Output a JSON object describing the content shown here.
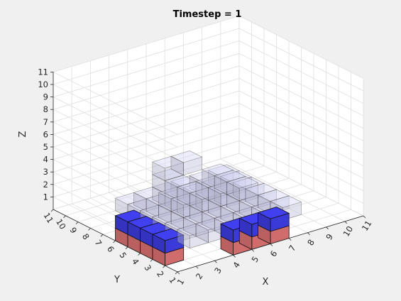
{
  "chart_data": {
    "type": "3d-voxel",
    "title": "Timestep = 1",
    "xlabel": "X",
    "ylabel": "Y",
    "zlabel": "Z",
    "xlim": [
      1,
      11
    ],
    "ylim": [
      1,
      11
    ],
    "zlim": [
      0,
      11
    ],
    "x_ticks": [
      "1",
      "2",
      "3",
      "4",
      "5",
      "6",
      "7",
      "8",
      "9",
      "10",
      "11"
    ],
    "y_ticks": [
      "1",
      "2",
      "3",
      "4",
      "5",
      "6",
      "7",
      "8",
      "9",
      "10",
      "11"
    ],
    "z_ticks": [
      "1",
      "2",
      "3",
      "4",
      "5",
      "6",
      "7",
      "8",
      "9",
      "10",
      "11"
    ],
    "grid": true,
    "colors": {
      "background": "#f0f0f0",
      "axes_face": "#ffffff",
      "grid": "#dfdfdf",
      "axis_line": "#262626",
      "blue": "#4040f0",
      "red": "#e87878",
      "ghost": "#d8d8f8"
    },
    "series": [
      {
        "color": "blue",
        "voxels": [
          {
            "x": 1,
            "y": 2,
            "z": 1
          },
          {
            "x": 1,
            "y": 3,
            "z": 1
          },
          {
            "x": 1,
            "y": 4,
            "z": 1
          },
          {
            "x": 1,
            "y": 5,
            "z": 1
          },
          {
            "x": 4,
            "y": 1,
            "z": 1
          },
          {
            "x": 5,
            "y": 1,
            "z": 1
          },
          {
            "x": 6,
            "y": 1,
            "z": 1
          }
        ]
      },
      {
        "color": "red",
        "voxels": [
          {
            "x": 1,
            "y": 2,
            "z": 0
          },
          {
            "x": 1,
            "y": 3,
            "z": 0
          },
          {
            "x": 1,
            "y": 4,
            "z": 0
          },
          {
            "x": 1,
            "y": 5,
            "z": 0
          },
          {
            "x": 4,
            "y": 1,
            "z": 0
          },
          {
            "x": 5,
            "y": 1,
            "z": 0
          },
          {
            "x": 6,
            "y": 1,
            "z": 0
          }
        ]
      },
      {
        "color": "ghost",
        "voxels": [
          {
            "x": 3,
            "y": 3,
            "z": 0
          },
          {
            "x": 4,
            "y": 3,
            "z": 0
          },
          {
            "x": 5,
            "y": 3,
            "z": 0
          },
          {
            "x": 6,
            "y": 3,
            "z": 0
          },
          {
            "x": 7,
            "y": 3,
            "z": 0
          },
          {
            "x": 8,
            "y": 3,
            "z": 0
          },
          {
            "x": 3,
            "y": 4,
            "z": 0
          },
          {
            "x": 4,
            "y": 4,
            "z": 0
          },
          {
            "x": 5,
            "y": 4,
            "z": 0
          },
          {
            "x": 6,
            "y": 4,
            "z": 0
          },
          {
            "x": 7,
            "y": 4,
            "z": 0
          },
          {
            "x": 8,
            "y": 4,
            "z": 0
          },
          {
            "x": 3,
            "y": 5,
            "z": 0
          },
          {
            "x": 4,
            "y": 5,
            "z": 0
          },
          {
            "x": 5,
            "y": 5,
            "z": 0
          },
          {
            "x": 6,
            "y": 5,
            "z": 0
          },
          {
            "x": 7,
            "y": 5,
            "z": 0
          },
          {
            "x": 8,
            "y": 5,
            "z": 0
          },
          {
            "x": 3,
            "y": 6,
            "z": 0
          },
          {
            "x": 4,
            "y": 6,
            "z": 0
          },
          {
            "x": 5,
            "y": 6,
            "z": 0
          },
          {
            "x": 6,
            "y": 6,
            "z": 0
          },
          {
            "x": 7,
            "y": 6,
            "z": 0
          },
          {
            "x": 8,
            "y": 6,
            "z": 0
          },
          {
            "x": 3,
            "y": 7,
            "z": 0
          },
          {
            "x": 4,
            "y": 7,
            "z": 0
          },
          {
            "x": 5,
            "y": 7,
            "z": 0
          },
          {
            "x": 6,
            "y": 7,
            "z": 0
          },
          {
            "x": 7,
            "y": 7,
            "z": 0
          },
          {
            "x": 8,
            "y": 7,
            "z": 0
          },
          {
            "x": 3,
            "y": 8,
            "z": 0
          },
          {
            "x": 4,
            "y": 8,
            "z": 0
          },
          {
            "x": 5,
            "y": 8,
            "z": 0
          },
          {
            "x": 6,
            "y": 8,
            "z": 0
          },
          {
            "x": 7,
            "y": 8,
            "z": 0
          },
          {
            "x": 8,
            "y": 8,
            "z": 0
          },
          {
            "x": 4,
            "y": 5,
            "z": 1
          },
          {
            "x": 5,
            "y": 5,
            "z": 1
          },
          {
            "x": 6,
            "y": 5,
            "z": 1
          },
          {
            "x": 7,
            "y": 5,
            "z": 1
          },
          {
            "x": 4,
            "y": 6,
            "z": 1
          },
          {
            "x": 5,
            "y": 6,
            "z": 1
          },
          {
            "x": 6,
            "y": 6,
            "z": 1
          },
          {
            "x": 7,
            "y": 6,
            "z": 1
          },
          {
            "x": 5,
            "y": 8,
            "z": 1
          },
          {
            "x": 5,
            "y": 7,
            "z": 1
          },
          {
            "x": 7,
            "y": 7,
            "z": 1
          },
          {
            "x": 6,
            "y": 8,
            "z": 2
          },
          {
            "x": 5,
            "y": 8,
            "z": 2
          }
        ]
      }
    ]
  }
}
